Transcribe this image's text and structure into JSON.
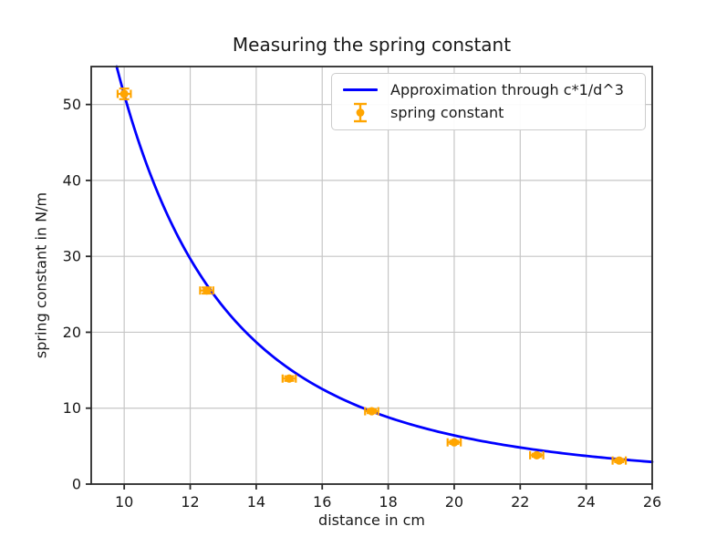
{
  "figure": {
    "background": "#ffffff",
    "text_color": "#1a1a1a",
    "grid_color": "#c6c6c6",
    "spine_color": "#2a2a2a"
  },
  "chart_data": {
    "type": "line",
    "title": "Measuring the spring constant",
    "xlabel": "distance in cm",
    "ylabel": "spring constant in N/m",
    "xlim": [
      9,
      26
    ],
    "ylim": [
      0,
      55
    ],
    "xticks": [
      10,
      12,
      14,
      16,
      18,
      20,
      22,
      24,
      26
    ],
    "yticks": [
      0,
      10,
      20,
      30,
      40,
      50
    ],
    "grid": true,
    "legend_position": "upper right",
    "series": [
      {
        "name": "Approximation through c*1/d^3",
        "type": "line",
        "color": "#0000ff",
        "formula": "c*1/d^3",
        "c": 51300,
        "x_start": 9.0,
        "x_end": 26.0
      },
      {
        "name": "spring constant",
        "type": "errorbar-scatter",
        "color": "#ffa500",
        "x": [
          10,
          12.5,
          15,
          17.5,
          20,
          22.5,
          25
        ],
        "y": [
          51.4,
          25.5,
          13.9,
          9.6,
          5.5,
          3.8,
          3.1
        ],
        "yerr": [
          0.7,
          0.4,
          0.3,
          0.25,
          0.2,
          0.2,
          0.2
        ],
        "xerr": 0.2
      }
    ]
  }
}
